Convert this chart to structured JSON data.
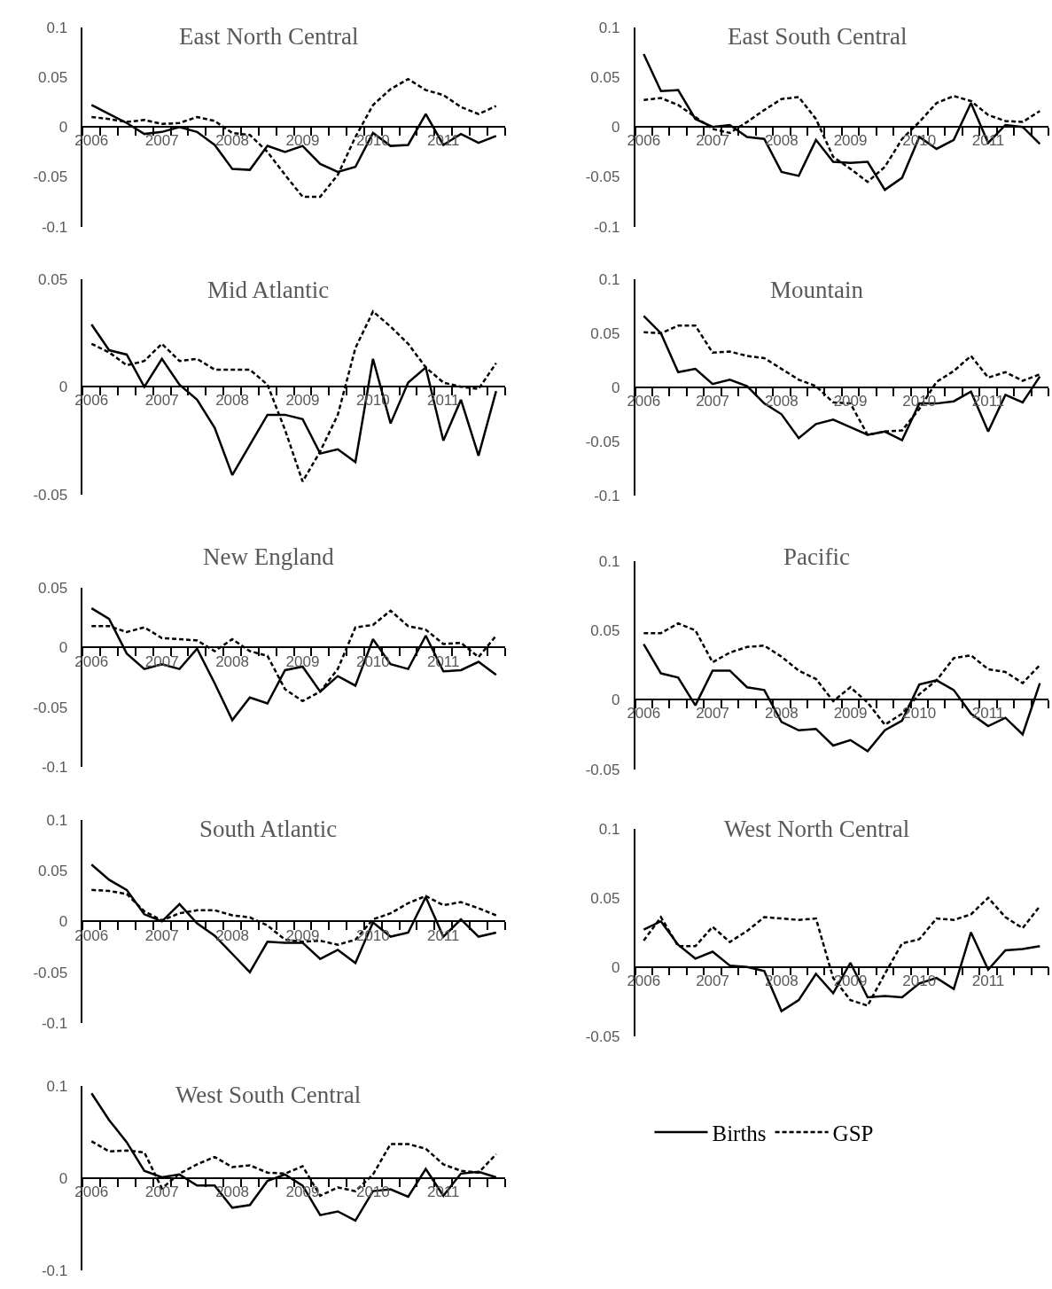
{
  "chart_data": [
    {
      "type": "line",
      "title": "East North Central",
      "categories": [
        "2006",
        null,
        null,
        null,
        "2007",
        null,
        null,
        null,
        "2008",
        null,
        null,
        null,
        "2009",
        null,
        null,
        null,
        "2010",
        null,
        null,
        null,
        "2011",
        null,
        null,
        null
      ],
      "ylim": [
        -0.1,
        0.1
      ],
      "yticks": [
        -0.1,
        -0.05,
        0,
        0.05,
        0.1
      ],
      "legend": false,
      "series": [
        {
          "color": "#000000",
          "line_style": "solid",
          "values": [
            0.022,
            0.013,
            0.004,
            -0.007,
            -0.005,
            0.0,
            -0.005,
            -0.018,
            -0.042,
            -0.043,
            -0.019,
            -0.025,
            -0.019,
            -0.037,
            -0.045,
            -0.04,
            -0.006,
            -0.019,
            -0.018,
            0.013,
            -0.018,
            -0.007,
            -0.016,
            -0.009
          ]
        },
        {
          "color": "#000000",
          "line_style": "dashed",
          "values": [
            0.01,
            0.008,
            0.005,
            0.007,
            0.003,
            0.004,
            0.01,
            0.006,
            -0.006,
            -0.008,
            -0.025,
            -0.048,
            -0.07,
            -0.07,
            -0.048,
            -0.01,
            0.022,
            0.038,
            0.048,
            0.037,
            0.032,
            0.02,
            0.013,
            0.021
          ]
        }
      ]
    },
    {
      "type": "line",
      "title": "East South Central",
      "categories": [
        "2006",
        null,
        null,
        null,
        "2007",
        null,
        null,
        null,
        "2008",
        null,
        null,
        null,
        "2009",
        null,
        null,
        null,
        "2010",
        null,
        null,
        null,
        "2011",
        null,
        null,
        null
      ],
      "ylim": [
        -0.1,
        0.1
      ],
      "yticks": [
        -0.1,
        -0.05,
        0,
        0.05,
        0.1
      ],
      "legend": false,
      "series": [
        {
          "color": "#000000",
          "line_style": "solid",
          "values": [
            0.073,
            0.036,
            0.037,
            0.008,
            0.0,
            0.002,
            -0.01,
            -0.012,
            -0.045,
            -0.049,
            -0.013,
            -0.035,
            -0.036,
            -0.035,
            -0.063,
            -0.051,
            -0.01,
            -0.022,
            -0.013,
            0.024,
            -0.016,
            0.002,
            0.0,
            -0.017
          ]
        },
        {
          "color": "#000000",
          "line_style": "dashed",
          "values": [
            0.027,
            0.029,
            0.022,
            0.01,
            -0.002,
            -0.006,
            0.005,
            0.017,
            0.028,
            0.03,
            0.008,
            -0.03,
            -0.042,
            -0.055,
            -0.04,
            -0.012,
            0.005,
            0.024,
            0.031,
            0.026,
            0.012,
            0.006,
            0.005,
            0.016
          ]
        }
      ]
    },
    {
      "type": "line",
      "title": "Mid Atlantic",
      "categories": [
        "2006",
        null,
        null,
        null,
        "2007",
        null,
        null,
        null,
        "2008",
        null,
        null,
        null,
        "2009",
        null,
        null,
        null,
        "2010",
        null,
        null,
        null,
        "2011",
        null,
        null,
        null
      ],
      "ylim": [
        -0.05,
        0.05
      ],
      "yticks": [
        -0.05,
        0,
        0.05
      ],
      "legend": false,
      "series": [
        {
          "color": "#000000",
          "line_style": "solid",
          "values": [
            0.029,
            0.017,
            0.015,
            0.0,
            0.013,
            0.001,
            -0.006,
            -0.019,
            -0.041,
            -0.027,
            -0.013,
            -0.013,
            -0.015,
            -0.031,
            -0.029,
            -0.035,
            0.013,
            -0.017,
            0.002,
            0.009,
            -0.025,
            -0.006,
            -0.032,
            -0.002
          ]
        },
        {
          "color": "#000000",
          "line_style": "dashed",
          "values": [
            0.02,
            0.016,
            0.01,
            0.012,
            0.02,
            0.012,
            0.013,
            0.008,
            0.008,
            0.008,
            0.001,
            -0.02,
            -0.044,
            -0.03,
            -0.013,
            0.018,
            0.035,
            0.028,
            0.02,
            0.009,
            0.002,
            0.0,
            -0.001,
            0.011
          ]
        }
      ]
    },
    {
      "type": "line",
      "title": "Mountain",
      "categories": [
        "2006",
        null,
        null,
        null,
        "2007",
        null,
        null,
        null,
        "2008",
        null,
        null,
        null,
        "2009",
        null,
        null,
        null,
        "2010",
        null,
        null,
        null,
        "2011",
        null,
        null,
        null
      ],
      "ylim": [
        -0.1,
        0.1
      ],
      "yticks": [
        -0.1,
        -0.05,
        0,
        0.05,
        0.1
      ],
      "legend": false,
      "series": [
        {
          "color": "#000000",
          "line_style": "solid",
          "values": [
            0.066,
            0.05,
            0.014,
            0.017,
            0.003,
            0.007,
            0.001,
            -0.015,
            -0.025,
            -0.047,
            -0.034,
            -0.03,
            -0.037,
            -0.044,
            -0.041,
            -0.049,
            -0.015,
            -0.015,
            -0.013,
            -0.004,
            -0.041,
            -0.007,
            -0.014,
            0.01
          ]
        },
        {
          "color": "#000000",
          "line_style": "dashed",
          "values": [
            0.051,
            0.05,
            0.057,
            0.057,
            0.032,
            0.033,
            0.029,
            0.027,
            0.017,
            0.007,
            0.001,
            -0.014,
            -0.015,
            -0.044,
            -0.041,
            -0.04,
            -0.02,
            0.005,
            0.015,
            0.029,
            0.009,
            0.014,
            0.006,
            0.012
          ]
        }
      ]
    },
    {
      "type": "line",
      "title": "New England",
      "categories": [
        "2006",
        null,
        null,
        null,
        "2007",
        null,
        null,
        null,
        "2008",
        null,
        null,
        null,
        "2009",
        null,
        null,
        null,
        "2010",
        null,
        null,
        null,
        "2011",
        null,
        null,
        null
      ],
      "ylim": [
        -0.1,
        0.05
      ],
      "yticks": [
        -0.1,
        -0.05,
        0,
        0.05
      ],
      "legend": false,
      "series": [
        {
          "color": "#000000",
          "line_style": "solid",
          "values": [
            0.033,
            0.024,
            -0.005,
            -0.018,
            -0.014,
            -0.018,
            -0.001,
            -0.03,
            -0.061,
            -0.042,
            -0.047,
            -0.019,
            -0.016,
            -0.037,
            -0.024,
            -0.032,
            0.007,
            -0.014,
            -0.018,
            0.01,
            -0.02,
            -0.019,
            -0.012,
            -0.023
          ]
        },
        {
          "color": "#000000",
          "line_style": "dashed",
          "values": [
            0.018,
            0.018,
            0.013,
            0.017,
            0.008,
            0.007,
            0.006,
            -0.003,
            0.007,
            -0.003,
            -0.007,
            -0.035,
            -0.045,
            -0.037,
            -0.018,
            0.017,
            0.019,
            0.031,
            0.018,
            0.015,
            0.003,
            0.004,
            -0.008,
            0.01
          ]
        }
      ]
    },
    {
      "type": "line",
      "title": "Pacific",
      "categories": [
        "2006",
        null,
        null,
        null,
        "2007",
        null,
        null,
        null,
        "2008",
        null,
        null,
        null,
        "2009",
        null,
        null,
        null,
        "2010",
        null,
        null,
        null,
        "2011",
        null,
        null,
        null
      ],
      "ylim": [
        -0.05,
        0.1
      ],
      "yticks": [
        -0.05,
        0,
        0.05,
        0.1
      ],
      "legend": false,
      "series": [
        {
          "color": "#000000",
          "line_style": "solid",
          "values": [
            0.04,
            0.019,
            0.016,
            -0.004,
            0.021,
            0.021,
            0.009,
            0.007,
            -0.016,
            -0.022,
            -0.021,
            -0.033,
            -0.029,
            -0.037,
            -0.022,
            -0.015,
            0.011,
            0.014,
            0.007,
            -0.01,
            -0.019,
            -0.013,
            -0.025,
            0.012
          ]
        },
        {
          "color": "#000000",
          "line_style": "dashed",
          "values": [
            0.048,
            0.048,
            0.055,
            0.05,
            0.027,
            0.034,
            0.038,
            0.039,
            0.031,
            0.021,
            0.015,
            -0.001,
            0.009,
            -0.002,
            -0.018,
            -0.01,
            0.004,
            0.014,
            0.03,
            0.032,
            0.022,
            0.02,
            0.012,
            0.025
          ]
        }
      ]
    },
    {
      "type": "line",
      "title": "South Atlantic",
      "categories": [
        "2006",
        null,
        null,
        null,
        "2007",
        null,
        null,
        null,
        "2008",
        null,
        null,
        null,
        "2009",
        null,
        null,
        null,
        "2010",
        null,
        null,
        null,
        "2011",
        null,
        null,
        null
      ],
      "ylim": [
        -0.1,
        0.1
      ],
      "yticks": [
        -0.1,
        -0.05,
        0,
        0.05,
        0.1
      ],
      "legend": false,
      "series": [
        {
          "color": "#000000",
          "line_style": "solid",
          "values": [
            0.056,
            0.041,
            0.031,
            0.007,
            0.0,
            0.017,
            -0.002,
            -0.014,
            -0.032,
            -0.05,
            -0.02,
            -0.021,
            -0.021,
            -0.037,
            -0.028,
            -0.041,
            -0.001,
            -0.015,
            -0.011,
            0.024,
            -0.015,
            0.002,
            -0.015,
            -0.011
          ]
        },
        {
          "color": "#000000",
          "line_style": "dashed",
          "values": [
            0.031,
            0.03,
            0.027,
            0.01,
            0.001,
            0.008,
            0.011,
            0.011,
            0.006,
            0.004,
            -0.004,
            -0.018,
            -0.02,
            -0.019,
            -0.023,
            -0.018,
            0.002,
            0.008,
            0.018,
            0.025,
            0.016,
            0.019,
            0.013,
            0.006
          ]
        }
      ]
    },
    {
      "type": "line",
      "title": "West North Central",
      "categories": [
        "2006",
        null,
        null,
        null,
        "2007",
        null,
        null,
        null,
        "2008",
        null,
        null,
        null,
        "2009",
        null,
        null,
        null,
        "2010",
        null,
        null,
        null,
        "2011",
        null,
        null,
        null
      ],
      "ylim": [
        -0.05,
        0.1
      ],
      "yticks": [
        -0.05,
        0,
        0.05,
        0.1
      ],
      "legend": false,
      "series": [
        {
          "color": "#000000",
          "line_style": "solid",
          "values": [
            0.027,
            0.033,
            0.016,
            0.006,
            0.011,
            0.001,
            0.0,
            -0.003,
            -0.032,
            -0.024,
            -0.005,
            -0.019,
            0.003,
            -0.022,
            -0.021,
            -0.022,
            -0.012,
            -0.008,
            -0.016,
            0.025,
            -0.002,
            0.012,
            0.013,
            0.015
          ]
        },
        {
          "color": "#000000",
          "line_style": "dashed",
          "values": [
            0.019,
            0.036,
            0.015,
            0.015,
            0.029,
            0.018,
            0.026,
            0.036,
            0.035,
            0.034,
            0.035,
            -0.008,
            -0.024,
            -0.028,
            -0.005,
            0.017,
            0.02,
            0.035,
            0.034,
            0.038,
            0.05,
            0.036,
            0.028,
            0.044
          ]
        }
      ]
    },
    {
      "type": "line",
      "title": "West South Central",
      "categories": [
        "2006",
        null,
        null,
        null,
        "2007",
        null,
        null,
        null,
        "2008",
        null,
        null,
        null,
        "2009",
        null,
        null,
        null,
        "2010",
        null,
        null,
        null,
        "2011",
        null,
        null,
        null
      ],
      "ylim": [
        -0.1,
        0.1
      ],
      "yticks": [
        -0.1,
        0,
        0.1
      ],
      "legend": "right",
      "series": [
        {
          "name": "Births",
          "color": "#000000",
          "line_style": "solid",
          "values": [
            0.092,
            0.063,
            0.039,
            0.008,
            0.001,
            0.004,
            -0.008,
            -0.008,
            -0.032,
            -0.029,
            -0.003,
            0.004,
            -0.008,
            -0.04,
            -0.036,
            -0.046,
            -0.014,
            -0.012,
            -0.02,
            0.01,
            -0.019,
            0.005,
            0.007,
            0.001
          ]
        },
        {
          "name": "GSP",
          "color": "#000000",
          "line_style": "dashed",
          "values": [
            0.04,
            0.029,
            0.03,
            0.028,
            -0.011,
            0.005,
            0.015,
            0.023,
            0.012,
            0.014,
            0.006,
            0.005,
            0.013,
            -0.019,
            -0.01,
            -0.014,
            0.004,
            0.037,
            0.037,
            0.032,
            0.015,
            0.008,
            0.006,
            0.026
          ]
        }
      ]
    }
  ]
}
